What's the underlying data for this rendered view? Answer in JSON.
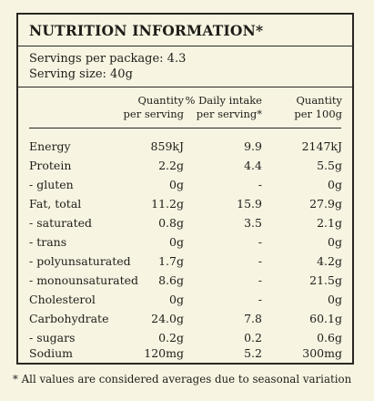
{
  "title": "NUTRITION INFORMATION*",
  "servings_per_package": "Servings per package: 4.3",
  "serving_size": "Serving size: 40g",
  "columns": {
    "col1_line1": "Quantity",
    "col1_line2": "per serving",
    "col2_line1": "% Daily intake",
    "col2_line2": "per serving*",
    "col3_line1": "Quantity",
    "col3_line2": "per 100g"
  },
  "rows": [
    {
      "label": "Energy",
      "per_serving": "859kJ",
      "daily_intake": "9.9",
      "per_100g": "2147kJ"
    },
    {
      "label": "Protein",
      "per_serving": "2.2g",
      "daily_intake": "4.4",
      "per_100g": "5.5g"
    },
    {
      "label": "- gluten",
      "per_serving": "0g",
      "daily_intake": "-",
      "per_100g": "0g"
    },
    {
      "label": "Fat, total",
      "per_serving": "11.2g",
      "daily_intake": "15.9",
      "per_100g": "27.9g"
    },
    {
      "label": "- saturated",
      "per_serving": "0.8g",
      "daily_intake": "3.5",
      "per_100g": "2.1g"
    },
    {
      "label": "- trans",
      "per_serving": "0g",
      "daily_intake": "-",
      "per_100g": "0g"
    },
    {
      "label": "- polyunsaturated",
      "per_serving": "1.7g",
      "daily_intake": "-",
      "per_100g": "4.2g"
    },
    {
      "label": "- monounsaturated",
      "per_serving": "8.6g",
      "daily_intake": "-",
      "per_100g": "21.5g"
    },
    {
      "label": "Cholesterol",
      "per_serving": "0g",
      "daily_intake": "-",
      "per_100g": "0g"
    },
    {
      "label": "Carbohydrate",
      "per_serving": "24.0g",
      "daily_intake": "7.8",
      "per_100g": "60.1g"
    },
    {
      "label": "- sugars",
      "per_serving": "0.2g",
      "daily_intake": "0.2",
      "per_100g": "0.6g"
    },
    {
      "label": "Sodium",
      "per_serving": "120mg",
      "daily_intake": "5.2",
      "per_100g": "300mg"
    }
  ],
  "footnote": "* All values are considered averages due to seasonal variation"
}
